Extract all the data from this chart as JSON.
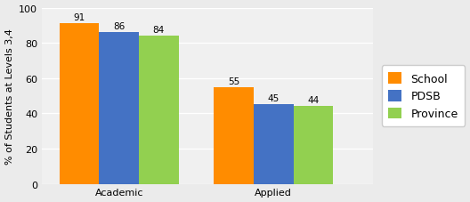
{
  "categories": [
    "Academic",
    "Applied"
  ],
  "series": {
    "School": [
      91,
      55
    ],
    "PDSB": [
      86,
      45
    ],
    "Province": [
      84,
      44
    ]
  },
  "colors": {
    "School": "#FF8C00",
    "PDSB": "#4472C4",
    "Province": "#92D050"
  },
  "ylabel": "% of Students at Levels 3,4",
  "ylim": [
    0,
    100
  ],
  "yticks": [
    0,
    20,
    40,
    60,
    80,
    100
  ],
  "bar_width": 0.18,
  "x_positions": [
    0.45,
    1.15
  ],
  "label_fontsize": 7.5,
  "axis_fontsize": 8,
  "tick_fontsize": 8,
  "legend_fontsize": 9,
  "background_color": "#EBEBEB",
  "plot_bg_color": "#F0F0F0"
}
